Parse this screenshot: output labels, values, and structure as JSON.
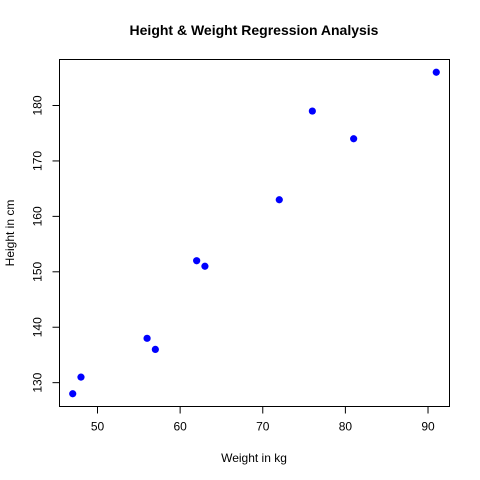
{
  "chart_data": {
    "type": "scatter",
    "title": "Height & Weight Regression Analysis",
    "xlabel": "Weight in kg",
    "ylabel": "Height in cm",
    "xlim": [
      45.4,
      92.6
    ],
    "ylim": [
      125.7,
      188.3
    ],
    "x_ticks": [
      50,
      60,
      70,
      80,
      90
    ],
    "y_ticks": [
      130,
      140,
      150,
      160,
      170,
      180
    ],
    "point_color": "#0000ff",
    "grid": false,
    "legend": "none",
    "points": [
      {
        "x": 47,
        "y": 128
      },
      {
        "x": 48,
        "y": 131
      },
      {
        "x": 56,
        "y": 138
      },
      {
        "x": 57,
        "y": 136
      },
      {
        "x": 62,
        "y": 152
      },
      {
        "x": 63,
        "y": 151
      },
      {
        "x": 72,
        "y": 163
      },
      {
        "x": 76,
        "y": 179
      },
      {
        "x": 81,
        "y": 174
      },
      {
        "x": 91,
        "y": 186
      }
    ]
  }
}
